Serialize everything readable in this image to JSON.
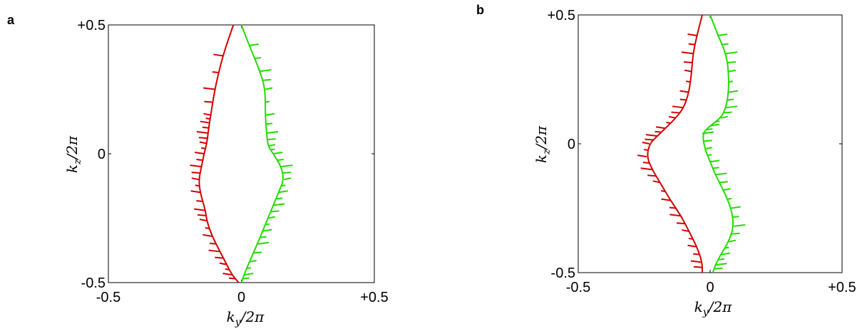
{
  "chart_data": [
    {
      "panel_label": "a",
      "type": "line",
      "xlabel": "k_y/2π",
      "ylabel": "k_z/2π",
      "xlim": [
        -0.5,
        0.5
      ],
      "ylim": [
        -0.5,
        0.5
      ],
      "xticks": [
        "-0.5",
        "0",
        "+0.5"
      ],
      "yticks": [
        "-0.5",
        "0",
        "+0.5"
      ],
      "xtick_values": [
        -0.5,
        0,
        0.5
      ],
      "ytick_values": [
        -0.5,
        0,
        0.5
      ],
      "series": [
        {
          "color": "#d40000",
          "x": [
            -0.03,
            -0.07,
            -0.1,
            -0.115,
            -0.12,
            -0.125,
            -0.13,
            -0.14,
            -0.15,
            -0.16,
            -0.155,
            -0.135,
            -0.13,
            -0.11,
            -0.08,
            -0.055,
            -0.035,
            -0.01
          ],
          "y": [
            0.5,
            0.38,
            0.25,
            0.15,
            0.12,
            0.08,
            0.04,
            0.0,
            -0.05,
            -0.1,
            -0.15,
            -0.22,
            -0.26,
            -0.32,
            -0.38,
            -0.43,
            -0.47,
            -0.5
          ]
        },
        {
          "color": "#22dd00",
          "x": [
            0.0,
            0.03,
            0.07,
            0.09,
            0.09,
            0.095,
            0.1,
            0.12,
            0.15,
            0.16,
            0.14,
            0.12,
            0.1,
            0.08,
            0.06,
            0.03,
            0.01,
            0.0
          ],
          "y": [
            0.5,
            0.42,
            0.32,
            0.25,
            0.15,
            0.08,
            0.03,
            0.0,
            -0.05,
            -0.1,
            -0.15,
            -0.2,
            -0.25,
            -0.3,
            -0.35,
            -0.42,
            -0.47,
            -0.5
          ]
        }
      ]
    },
    {
      "panel_label": "b",
      "type": "line",
      "xlabel": "k_y/2π",
      "ylabel": "k_z/2π",
      "xlim": [
        -0.5,
        0.5
      ],
      "ylim": [
        -0.5,
        0.5
      ],
      "xticks": [
        "-0.5",
        "0",
        "+0.5"
      ],
      "yticks": [
        "-0.5",
        "0",
        "+0.5"
      ],
      "xtick_values": [
        -0.5,
        0,
        0.5
      ],
      "ytick_values": [
        -0.5,
        0,
        0.5
      ],
      "series": [
        {
          "color": "#d40000",
          "x": [
            -0.03,
            -0.05,
            -0.065,
            -0.07,
            -0.08,
            -0.1,
            -0.13,
            -0.17,
            -0.2,
            -0.23,
            -0.24,
            -0.22,
            -0.19,
            -0.15,
            -0.11,
            -0.08,
            -0.05,
            -0.03,
            -0.03
          ],
          "y": [
            0.5,
            0.42,
            0.35,
            0.28,
            0.2,
            0.14,
            0.1,
            0.06,
            0.03,
            0.0,
            -0.05,
            -0.1,
            -0.15,
            -0.22,
            -0.28,
            -0.34,
            -0.4,
            -0.46,
            -0.5
          ]
        },
        {
          "color": "#22dd00",
          "x": [
            0.0,
            0.03,
            0.06,
            0.07,
            0.07,
            0.06,
            0.04,
            0.0,
            -0.03,
            -0.02,
            0.0,
            0.02,
            0.05,
            0.08,
            0.09,
            0.07,
            0.04,
            0.02,
            0.01
          ],
          "y": [
            0.5,
            0.42,
            0.35,
            0.28,
            0.2,
            0.14,
            0.1,
            0.07,
            0.04,
            -0.02,
            -0.07,
            -0.12,
            -0.18,
            -0.25,
            -0.32,
            -0.38,
            -0.43,
            -0.47,
            -0.5
          ]
        }
      ]
    }
  ]
}
